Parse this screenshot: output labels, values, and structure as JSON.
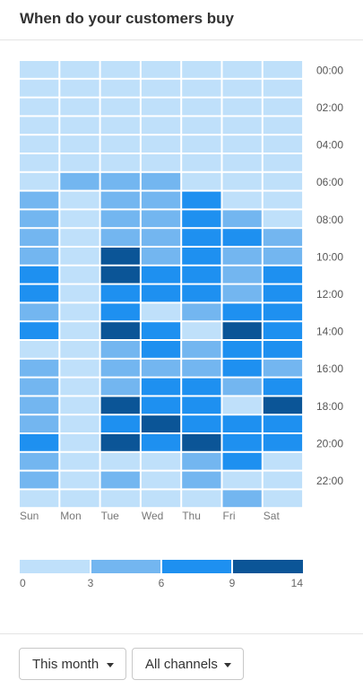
{
  "title": "When do your customers buy",
  "filters": {
    "period": "This month",
    "channel": "All channels"
  },
  "chart_data": {
    "type": "heatmap",
    "x_categories": [
      "Sun",
      "Mon",
      "Tue",
      "Wed",
      "Thu",
      "Fri",
      "Sat"
    ],
    "y_tick_labels": [
      "00:00",
      "02:00",
      "04:00",
      "06:00",
      "08:00",
      "10:00",
      "12:00",
      "14:00",
      "16:00",
      "18:00",
      "20:00",
      "22:00"
    ],
    "hours": 24,
    "bins": [
      0,
      3,
      6,
      9,
      14
    ],
    "colors": [
      "#bfe0fa",
      "#73b6f0",
      "#1e90f0",
      "#0b5597"
    ],
    "values_bin_index": [
      [
        0,
        0,
        0,
        0,
        0,
        0,
        0
      ],
      [
        0,
        0,
        0,
        0,
        0,
        0,
        0
      ],
      [
        0,
        0,
        0,
        0,
        0,
        0,
        0
      ],
      [
        0,
        0,
        0,
        0,
        0,
        0,
        0
      ],
      [
        0,
        0,
        0,
        0,
        0,
        0,
        0
      ],
      [
        0,
        0,
        0,
        0,
        0,
        0,
        0
      ],
      [
        0,
        1,
        1,
        1,
        0,
        0,
        0
      ],
      [
        1,
        0,
        1,
        1,
        2,
        0,
        0
      ],
      [
        1,
        0,
        1,
        1,
        2,
        1,
        0
      ],
      [
        1,
        0,
        1,
        1,
        2,
        2,
        1
      ],
      [
        1,
        0,
        3,
        1,
        2,
        1,
        1
      ],
      [
        2,
        0,
        3,
        2,
        2,
        1,
        2
      ],
      [
        2,
        0,
        2,
        2,
        2,
        1,
        2
      ],
      [
        1,
        0,
        2,
        0,
        1,
        2,
        2
      ],
      [
        2,
        0,
        3,
        2,
        0,
        3,
        2
      ],
      [
        0,
        0,
        1,
        2,
        1,
        2,
        2
      ],
      [
        1,
        0,
        1,
        1,
        1,
        2,
        1
      ],
      [
        1,
        0,
        1,
        2,
        2,
        1,
        2
      ],
      [
        1,
        0,
        3,
        2,
        2,
        0,
        3
      ],
      [
        1,
        0,
        2,
        3,
        2,
        2,
        2
      ],
      [
        2,
        0,
        3,
        2,
        3,
        2,
        2
      ],
      [
        1,
        0,
        0,
        0,
        1,
        2,
        0
      ],
      [
        1,
        0,
        1,
        0,
        1,
        0,
        0
      ],
      [
        0,
        0,
        0,
        0,
        0,
        1,
        0
      ]
    ]
  }
}
